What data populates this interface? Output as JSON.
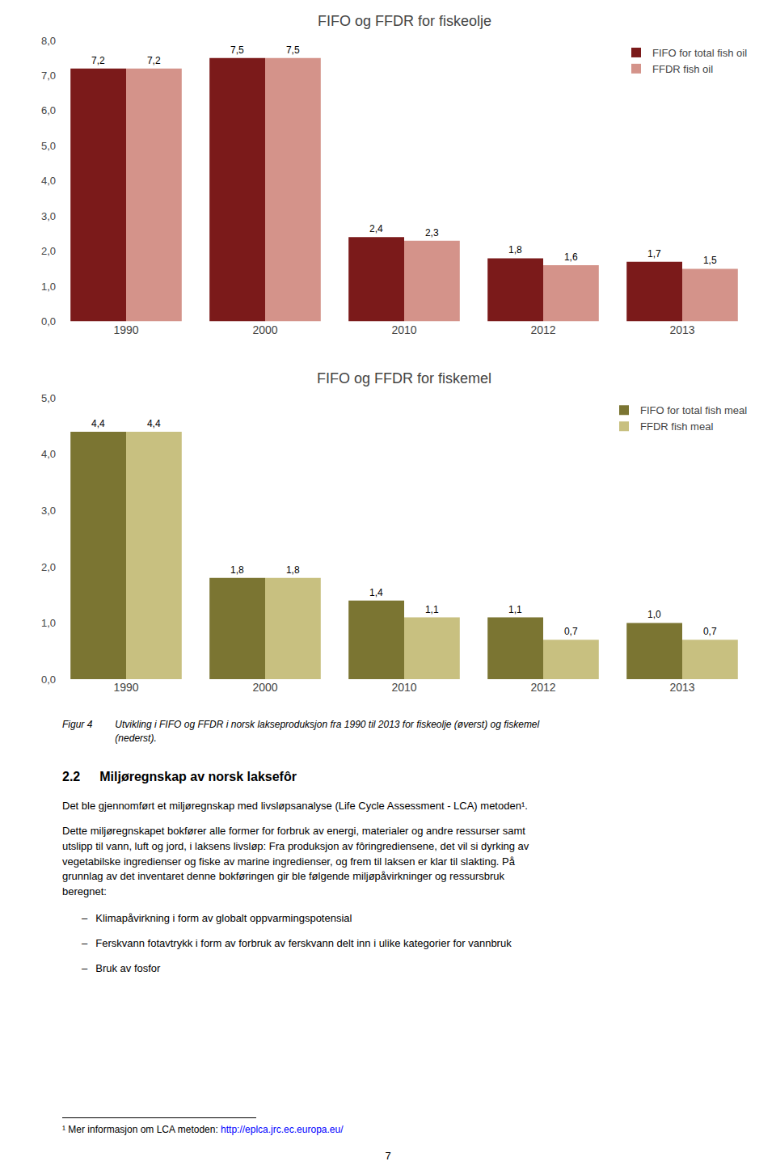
{
  "chart_data": [
    {
      "type": "bar",
      "title": "FIFO og FFDR for fiskeolje",
      "categories": [
        "1990",
        "2000",
        "2010",
        "2012",
        "2013"
      ],
      "series": [
        {
          "name": "FIFO for total fish oil",
          "color": "#7B1A1A",
          "values": [
            7.2,
            7.5,
            2.4,
            1.8,
            1.7
          ],
          "value_labels": [
            "7,2",
            "7,5",
            "2,4",
            "1,8",
            "1,7"
          ]
        },
        {
          "name": "FFDR fish oil",
          "color": "#D4938A",
          "values": [
            7.2,
            7.5,
            2.3,
            1.6,
            1.5
          ],
          "value_labels": [
            "7,2",
            "7,5",
            "2,3",
            "1,6",
            "1,5"
          ]
        }
      ],
      "ylim": [
        0,
        8.0
      ],
      "yticks": [
        {
          "value": 0.0,
          "label": "0,0"
        },
        {
          "value": 1.0,
          "label": "1,0"
        },
        {
          "value": 2.0,
          "label": "2,0"
        },
        {
          "value": 3.0,
          "label": "3,0"
        },
        {
          "value": 4.0,
          "label": "4,0"
        },
        {
          "value": 5.0,
          "label": "5,0"
        },
        {
          "value": 6.0,
          "label": "6,0"
        },
        {
          "value": 7.0,
          "label": "7,0"
        },
        {
          "value": 8.0,
          "label": "8,0"
        }
      ],
      "grid": false,
      "legend": "upper right",
      "data_labels": true
    },
    {
      "type": "bar",
      "title": "FIFO og FFDR for fiskemel",
      "categories": [
        "1990",
        "2000",
        "2010",
        "2012",
        "2013"
      ],
      "series": [
        {
          "name": "FIFO for total fish meal",
          "color": "#7B7532",
          "values": [
            4.4,
            1.8,
            1.4,
            1.1,
            1.0
          ],
          "value_labels": [
            "4,4",
            "1,8",
            "1,4",
            "1,1",
            "1,0"
          ]
        },
        {
          "name": "FFDR fish meal",
          "color": "#C8C080",
          "values": [
            4.4,
            1.8,
            1.1,
            0.7,
            0.7
          ],
          "value_labels": [
            "4,4",
            "1,8",
            "1,1",
            "0,7",
            "0,7"
          ]
        }
      ],
      "ylim": [
        0,
        5.0
      ],
      "yticks": [
        {
          "value": 0.0,
          "label": "0,0"
        },
        {
          "value": 1.0,
          "label": "1,0"
        },
        {
          "value": 2.0,
          "label": "2,0"
        },
        {
          "value": 3.0,
          "label": "3,0"
        },
        {
          "value": 4.0,
          "label": "4,0"
        },
        {
          "value": 5.0,
          "label": "5,0"
        }
      ],
      "grid": false,
      "legend": "upper right",
      "data_labels": true
    }
  ],
  "annotations": {
    "figure_label": "Figur 4",
    "figure_caption": "Utvikling i FIFO og FFDR i norsk lakseproduksjon fra 1990 til 2013 for fiskeolje (øverst) og fiskemel\n(nederst).",
    "section_number": "2.2",
    "section_title": "Miljøregnskap av norsk laksefôr",
    "paragraph1": "Det ble gjennomført et miljøregnskap med livsløpsanalyse (Life Cycle Assessment - LCA) metoden¹.",
    "paragraph2_lines": [
      "Dette miljøregnskapet bokfører alle former for forbruk av energi, materialer og andre ressurser samt",
      "utslipp til vann, luft og jord, i laksens livsløp: Fra produksjon av fôringrediensene, det vil si dyrking av",
      "vegetabilske ingredienser og fiske av marine ingredienser, og frem til laksen er klar til slakting. På",
      "grunnlag av det inventaret denne bokføringen gir ble følgende miljøpåvirkninger og ressursbruk",
      "beregnet:"
    ],
    "bullet_mark": "–",
    "bullets": [
      "Klimapåvirkning i form av globalt oppvarmingspotensial",
      "Ferskvann fotavtrykk i form av forbruk av ferskvann delt inn i ulike kategorier for vannbruk",
      "Bruk av fosfor"
    ],
    "footnote": "¹ Mer informasjon om LCA metoden: ",
    "footnote_link": "http://eplca.jrc.ec.europa.eu/",
    "page_number": "7"
  }
}
